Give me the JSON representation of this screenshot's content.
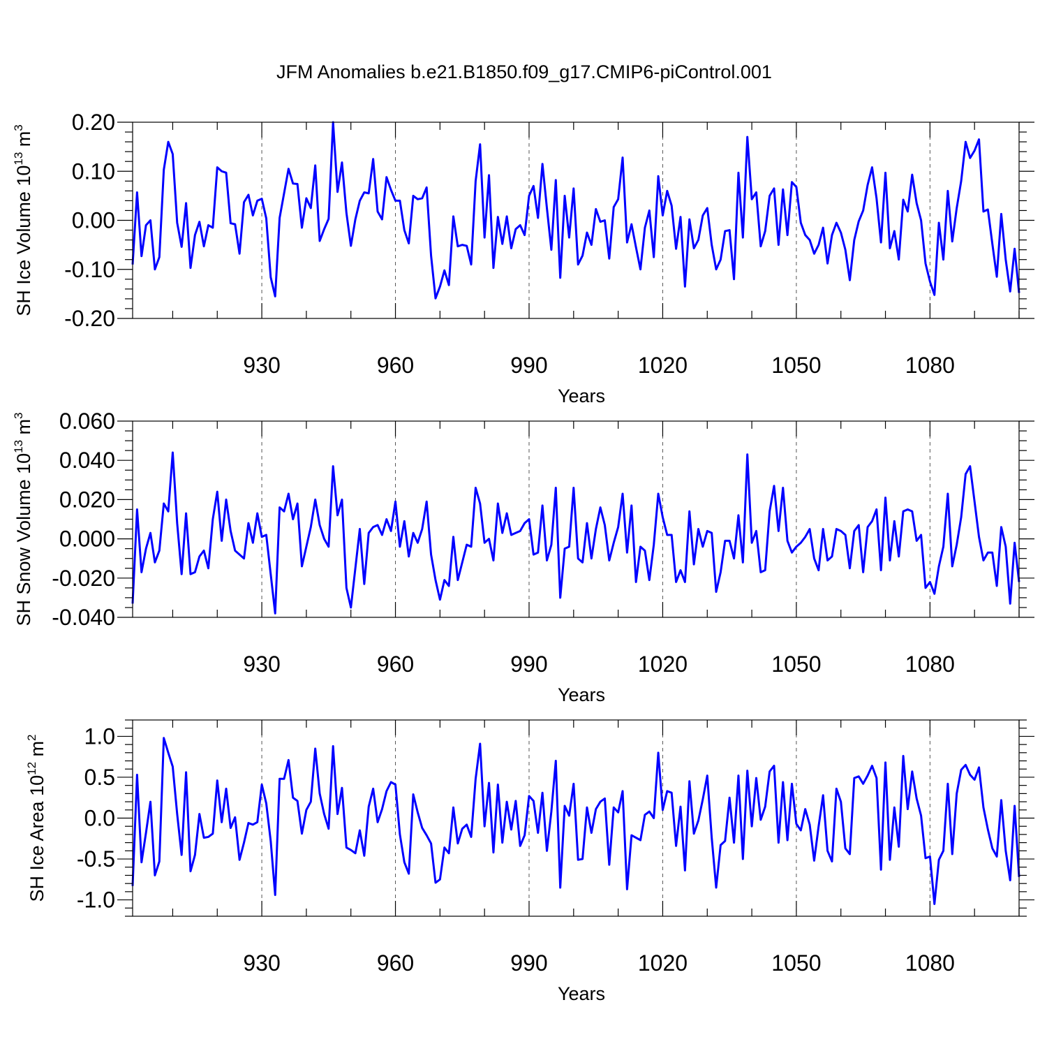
{
  "title": "JFM Anomalies b.e21.B1850.f09_g17.CMIP6-piControl.001",
  "colors": {
    "series": "#0000ff",
    "grid": "#555555"
  },
  "chart_data": [
    {
      "type": "line",
      "ylabel": {
        "prefix": "SH Ice Volume 10",
        "exp": "13",
        "unit": " m",
        "unit_exp": "3"
      },
      "xlabel": "Years",
      "xlim": [
        901,
        1100
      ],
      "ylim": [
        -0.2,
        0.2
      ],
      "x_ticks": [
        930,
        960,
        990,
        1020,
        1050,
        1080
      ],
      "x_tick_labels": [
        "930",
        "960",
        "990",
        "1020",
        "1050",
        "1080"
      ],
      "y_ticks": [
        -0.2,
        -0.1,
        0.0,
        0.1,
        0.2
      ],
      "y_tick_labels": [
        "-0.20",
        "-0.10",
        "0.00",
        "0.10",
        "0.20"
      ],
      "y_minor_step": 0.02,
      "x_minor_step": 10,
      "grid": "vertical dashed at major x ticks",
      "series": [
        {
          "x_start": 901,
          "values": [
            -0.09,
            0.057,
            -0.073,
            -0.01,
            0.0,
            -0.1,
            -0.075,
            0.103,
            0.16,
            0.135,
            -0.005,
            -0.054,
            0.035,
            -0.097,
            -0.03,
            -0.003,
            -0.053,
            -0.01,
            -0.015,
            0.108,
            0.1,
            0.097,
            -0.006,
            -0.008,
            -0.068,
            0.037,
            0.052,
            0.01,
            0.04,
            0.044,
            0.004,
            -0.116,
            -0.155,
            0.005,
            0.055,
            0.105,
            0.075,
            0.074,
            -0.015,
            0.045,
            0.025,
            0.112,
            -0.042,
            -0.018,
            0.003,
            0.2,
            0.058,
            0.118,
            0.015,
            -0.052,
            0.002,
            0.04,
            0.057,
            0.055,
            0.125,
            0.018,
            0.002,
            0.088,
            0.062,
            0.04,
            0.04,
            -0.02,
            -0.047,
            0.05,
            0.043,
            0.045,
            0.067,
            -0.072,
            -0.159,
            -0.135,
            -0.102,
            -0.132,
            0.008,
            -0.053,
            -0.05,
            -0.052,
            -0.09,
            0.08,
            0.155,
            -0.035,
            0.092,
            -0.097,
            0.007,
            -0.048,
            0.008,
            -0.057,
            -0.018,
            -0.01,
            -0.03,
            0.05,
            0.07,
            0.005,
            0.115,
            0.025,
            -0.06,
            0.082,
            -0.117,
            0.05,
            -0.035,
            0.065,
            -0.09,
            -0.072,
            -0.025,
            -0.05,
            0.023,
            -0.003,
            0.0,
            -0.078,
            0.027,
            0.043,
            0.128,
            -0.045,
            -0.008,
            -0.055,
            -0.1,
            -0.015,
            0.02,
            -0.075,
            0.09,
            0.01,
            0.06,
            0.03,
            -0.058,
            0.007,
            -0.135,
            0.002,
            -0.057,
            -0.04,
            0.01,
            0.025,
            -0.05,
            -0.1,
            -0.08,
            -0.022,
            -0.02,
            -0.12,
            0.097,
            -0.035,
            0.17,
            0.043,
            0.057,
            -0.053,
            -0.022,
            0.05,
            0.065,
            -0.05,
            0.063,
            -0.03,
            0.078,
            0.068,
            -0.005,
            -0.03,
            -0.04,
            -0.068,
            -0.05,
            -0.015,
            -0.088,
            -0.03,
            -0.005,
            -0.025,
            -0.06,
            -0.122,
            -0.04,
            -0.002,
            0.02,
            0.072,
            0.108,
            0.045,
            -0.045,
            0.097,
            -0.057,
            -0.022,
            -0.08,
            0.042,
            0.018,
            0.093,
            0.035,
            0.0,
            -0.088,
            -0.125,
            -0.152,
            -0.005,
            -0.08,
            0.06,
            -0.043,
            0.025,
            0.08,
            0.16,
            0.127,
            0.142,
            0.165,
            0.018,
            0.022,
            -0.048,
            -0.115,
            0.013,
            -0.08,
            -0.145,
            -0.058,
            -0.148
          ]
        }
      ]
    },
    {
      "type": "line",
      "ylabel": {
        "prefix": "SH Snow Volume 10",
        "exp": "13",
        "unit": " m",
        "unit_exp": "3"
      },
      "xlabel": "Years",
      "xlim": [
        901,
        1100
      ],
      "ylim": [
        -0.04,
        0.06
      ],
      "x_ticks": [
        930,
        960,
        990,
        1020,
        1050,
        1080
      ],
      "x_tick_labels": [
        "930",
        "960",
        "990",
        "1020",
        "1050",
        "1080"
      ],
      "y_ticks": [
        -0.04,
        -0.02,
        0.0,
        0.02,
        0.04,
        0.06
      ],
      "y_tick_labels": [
        "-0.040",
        "-0.020",
        "0.000",
        "0.020",
        "0.040",
        "0.060"
      ],
      "y_minor_step": 0.005,
      "x_minor_step": 10,
      "grid": "vertical dashed at major x ticks",
      "series": [
        {
          "x_start": 901,
          "values": [
            -0.033,
            0.015,
            -0.017,
            -0.005,
            0.003,
            -0.012,
            -0.006,
            0.018,
            0.014,
            0.044,
            0.008,
            -0.018,
            0.013,
            -0.018,
            -0.017,
            -0.009,
            -0.006,
            -0.015,
            0.01,
            0.024,
            -0.001,
            0.02,
            0.004,
            -0.006,
            -0.008,
            -0.01,
            0.008,
            -0.002,
            0.013,
            0.001,
            0.002,
            -0.018,
            -0.038,
            0.016,
            0.014,
            0.023,
            0.01,
            0.018,
            -0.014,
            -0.004,
            0.006,
            0.02,
            0.007,
            0.0,
            -0.004,
            0.037,
            0.012,
            0.02,
            -0.025,
            -0.035,
            -0.015,
            0.005,
            -0.023,
            0.003,
            0.006,
            0.007,
            0.002,
            0.01,
            0.004,
            0.019,
            -0.004,
            0.009,
            -0.009,
            0.003,
            -0.002,
            0.005,
            0.019,
            -0.008,
            -0.021,
            -0.031,
            -0.021,
            -0.024,
            0.001,
            -0.021,
            -0.012,
            -0.003,
            -0.004,
            0.026,
            0.018,
            -0.002,
            0.0,
            -0.011,
            0.018,
            0.003,
            0.013,
            0.002,
            0.003,
            0.004,
            0.008,
            0.01,
            -0.008,
            -0.007,
            0.017,
            -0.011,
            -0.003,
            0.026,
            -0.03,
            -0.005,
            -0.004,
            0.026,
            -0.01,
            -0.012,
            0.008,
            -0.01,
            0.005,
            0.016,
            0.007,
            -0.011,
            -0.002,
            0.006,
            0.023,
            -0.007,
            0.017,
            -0.022,
            -0.004,
            -0.006,
            -0.021,
            -0.003,
            0.023,
            0.011,
            0.002,
            0.002,
            -0.022,
            -0.016,
            -0.022,
            0.014,
            -0.013,
            0.005,
            -0.004,
            0.004,
            0.003,
            -0.027,
            -0.017,
            -0.001,
            -0.001,
            -0.01,
            0.012,
            -0.012,
            0.043,
            -0.002,
            0.004,
            -0.017,
            -0.016,
            0.014,
            0.027,
            0.004,
            0.026,
            -0.001,
            -0.007,
            -0.004,
            -0.002,
            0.001,
            0.005,
            -0.01,
            -0.016,
            0.005,
            -0.011,
            -0.009,
            0.005,
            0.004,
            0.002,
            -0.015,
            0.004,
            0.007,
            -0.017,
            0.006,
            0.009,
            0.015,
            -0.016,
            0.021,
            -0.011,
            0.009,
            -0.009,
            0.014,
            0.015,
            0.014,
            -0.001,
            0.002,
            -0.025,
            -0.022,
            -0.028,
            -0.014,
            -0.004,
            0.023,
            -0.014,
            -0.003,
            0.011,
            0.033,
            0.037,
            0.019,
            0.001,
            -0.011,
            -0.007,
            -0.007,
            -0.024,
            0.006,
            -0.004,
            -0.033,
            -0.002,
            -0.022
          ]
        }
      ]
    },
    {
      "type": "line",
      "ylabel": {
        "prefix": "SH Ice Area 10",
        "exp": "12",
        "unit": " m",
        "unit_exp": "2"
      },
      "xlabel": "Years",
      "xlim": [
        901,
        1100
      ],
      "ylim": [
        -1.2,
        1.2
      ],
      "x_ticks": [
        930,
        960,
        990,
        1020,
        1050,
        1080
      ],
      "x_tick_labels": [
        "930",
        "960",
        "990",
        "1020",
        "1050",
        "1080"
      ],
      "y_ticks": [
        -1.0,
        -0.5,
        0.0,
        0.5,
        1.0
      ],
      "y_tick_labels": [
        "-1.0",
        "-0.5",
        "0.0",
        "0.5",
        "1.0"
      ],
      "y_minor_step": 0.1,
      "x_minor_step": 10,
      "grid": "vertical dashed at major x ticks",
      "series": [
        {
          "x_start": 901,
          "values": [
            -0.83,
            0.53,
            -0.54,
            -0.18,
            0.2,
            -0.7,
            -0.53,
            0.98,
            0.8,
            0.63,
            0.05,
            -0.45,
            0.56,
            -0.65,
            -0.45,
            0.05,
            -0.24,
            -0.23,
            -0.19,
            0.46,
            -0.05,
            0.36,
            -0.12,
            0.01,
            -0.51,
            -0.3,
            -0.06,
            -0.08,
            -0.05,
            0.41,
            0.18,
            -0.28,
            -0.94,
            0.48,
            0.48,
            0.71,
            0.25,
            0.21,
            -0.19,
            0.1,
            0.2,
            0.85,
            0.3,
            0.05,
            -0.13,
            0.88,
            0.05,
            0.37,
            -0.36,
            -0.39,
            -0.43,
            -0.15,
            -0.46,
            0.14,
            0.36,
            -0.05,
            0.11,
            0.33,
            0.44,
            0.41,
            -0.2,
            -0.54,
            -0.68,
            0.29,
            0.07,
            -0.12,
            -0.21,
            -0.31,
            -0.79,
            -0.75,
            -0.36,
            -0.43,
            0.13,
            -0.31,
            -0.13,
            -0.08,
            -0.23,
            0.48,
            0.91,
            -0.1,
            0.43,
            -0.42,
            0.41,
            -0.3,
            0.2,
            -0.14,
            0.21,
            -0.34,
            -0.21,
            0.27,
            0.21,
            -0.18,
            0.31,
            -0.4,
            0.08,
            0.7,
            -0.85,
            0.15,
            0.03,
            0.42,
            -0.51,
            -0.5,
            0.13,
            -0.18,
            0.11,
            0.2,
            0.24,
            -0.57,
            0.13,
            0.07,
            0.33,
            -0.87,
            -0.21,
            -0.24,
            -0.27,
            0.04,
            0.08,
            0.0,
            0.8,
            0.1,
            0.33,
            0.31,
            -0.34,
            0.14,
            -0.64,
            0.45,
            -0.19,
            -0.03,
            0.23,
            0.52,
            -0.24,
            -0.85,
            -0.33,
            -0.28,
            0.25,
            -0.3,
            0.52,
            -0.5,
            0.58,
            -0.1,
            0.49,
            -0.02,
            0.14,
            0.57,
            0.64,
            -0.3,
            0.44,
            -0.27,
            0.42,
            -0.07,
            -0.15,
            0.11,
            -0.08,
            -0.52,
            -0.1,
            0.28,
            -0.4,
            -0.53,
            0.36,
            0.2,
            -0.37,
            -0.44,
            0.49,
            0.51,
            0.42,
            0.52,
            0.64,
            0.49,
            -0.63,
            0.68,
            -0.51,
            0.13,
            -0.35,
            0.76,
            0.11,
            0.57,
            0.24,
            0.03,
            -0.49,
            -0.47,
            -1.05,
            -0.51,
            -0.4,
            0.42,
            -0.44,
            0.3,
            0.59,
            0.65,
            0.53,
            0.47,
            0.62,
            0.13,
            -0.14,
            -0.37,
            -0.47,
            0.22,
            -0.4,
            -0.76,
            0.15,
            -0.72
          ]
        }
      ]
    }
  ]
}
